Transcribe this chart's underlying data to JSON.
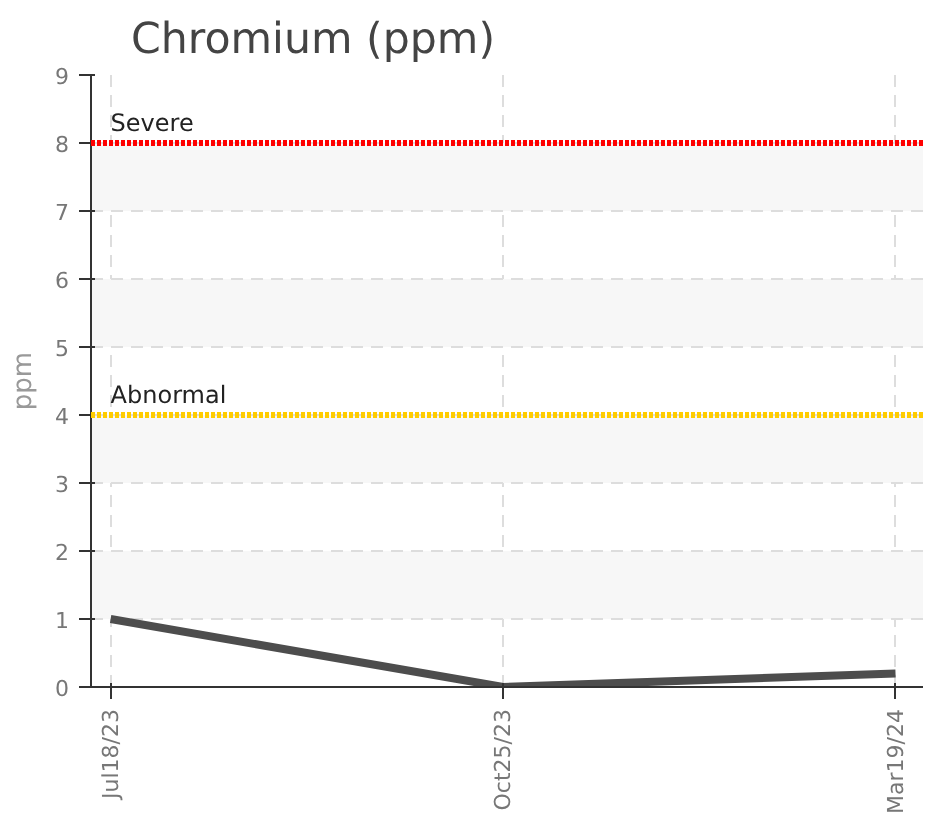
{
  "chart_data": {
    "type": "line",
    "title": "Chromium (ppm)",
    "ylabel": "ppm",
    "categories": [
      "Jul18/23",
      "Oct25/23",
      "Mar19/24"
    ],
    "series": [
      {
        "color": "#4d4d4d",
        "values": [
          1,
          0,
          0.2
        ]
      }
    ],
    "ylim": [
      0,
      9
    ],
    "yticks": [
      0,
      1,
      2,
      3,
      4,
      5,
      6,
      7,
      8,
      9
    ],
    "ref_lines": [
      {
        "axis": "y",
        "value": 8,
        "label": "Severe",
        "color": "#ff0000",
        "line_style": "dotted"
      },
      {
        "axis": "y",
        "value": 4,
        "label": "Abnormal",
        "color": "#ffcc00",
        "line_style": "dotted"
      }
    ],
    "grid": true,
    "marker": "none",
    "line_style": "solid"
  }
}
